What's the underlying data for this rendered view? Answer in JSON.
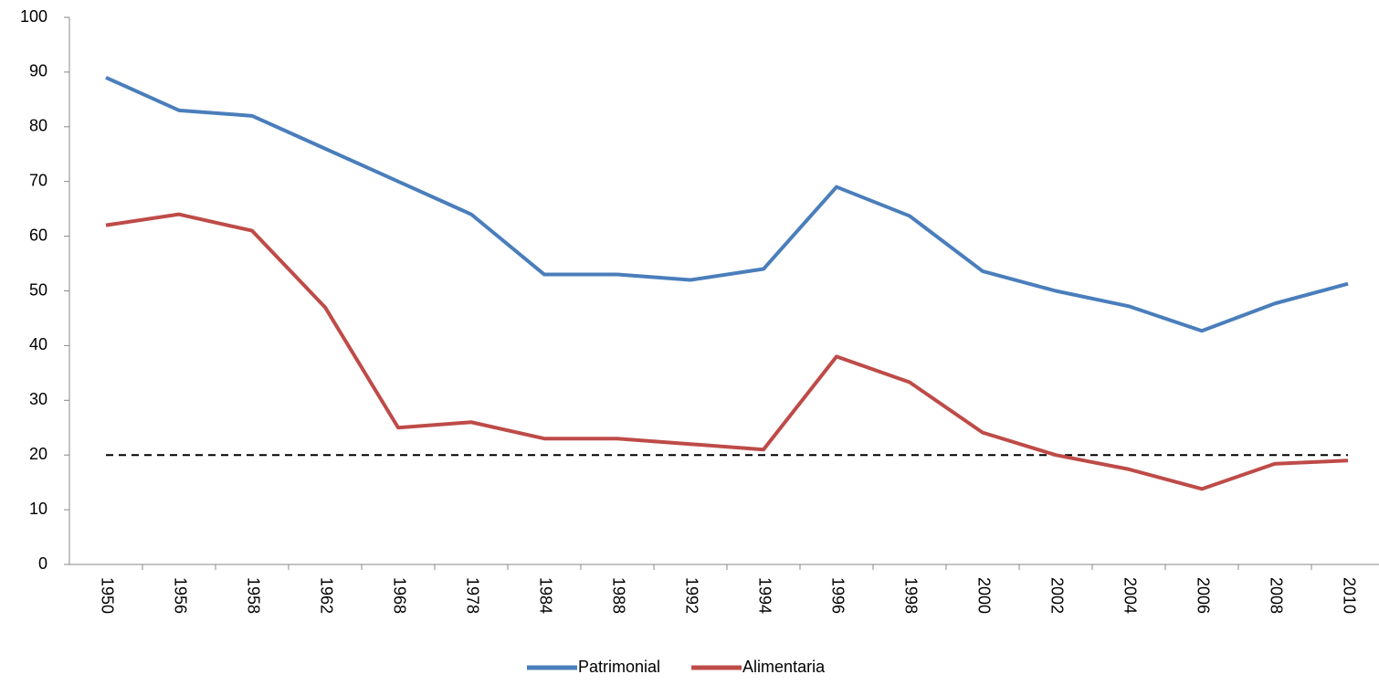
{
  "chart_data": {
    "type": "line",
    "categories": [
      "1950",
      "1956",
      "1958",
      "1962",
      "1968",
      "1978",
      "1984",
      "1988",
      "1992",
      "1994",
      "1996",
      "1998",
      "2000",
      "2002",
      "2004",
      "2006",
      "2008",
      "2010"
    ],
    "series": [
      {
        "name": "Patrimonial",
        "color": "#4a7ebb",
        "values": [
          89,
          83,
          82,
          76,
          70,
          64,
          53,
          53,
          52,
          54,
          69,
          63.7,
          53.6,
          50,
          47.2,
          42.7,
          47.7,
          51.3
        ]
      },
      {
        "name": "Alimentaria",
        "color": "#be4b48",
        "values": [
          62,
          64,
          61,
          47,
          25,
          26,
          23,
          23,
          22,
          21,
          38,
          33.3,
          24.1,
          20,
          17.4,
          13.8,
          18.4,
          19
        ]
      }
    ],
    "reference_line": 20,
    "ylim": [
      0,
      100
    ],
    "yticks": [
      0,
      10,
      20,
      30,
      40,
      50,
      60,
      70,
      80,
      90,
      100
    ],
    "legend": "bottom"
  }
}
